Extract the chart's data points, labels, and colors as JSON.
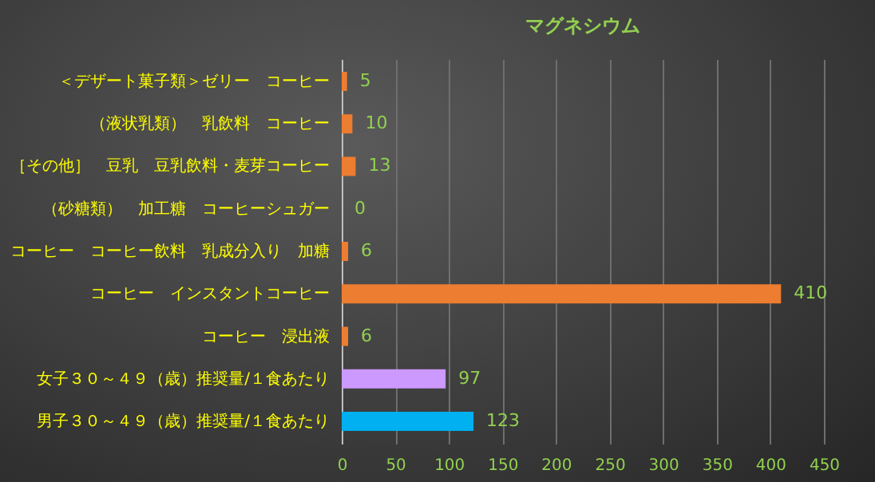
{
  "chart_data": {
    "type": "bar",
    "orientation": "horizontal",
    "title": "マグネシウム",
    "categories": [
      "＜デザート菓子類＞ゼリー　コーヒー",
      "（液状乳類）　乳飲料　コーヒー",
      "［その他］　豆乳　豆乳飲料・麦芽コーヒー",
      "（砂糖類）　加工糖　コーヒーシュガー",
      "コーヒー　コーヒー飲料　乳成分入り　加糖",
      "コーヒー　インスタントコーヒー",
      "コーヒー　浸出液",
      "女子３０～４９（歳）推奨量/１食あたり",
      "男子３０～４９（歳）推奨量/１食あたり"
    ],
    "values": [
      5,
      10,
      13,
      0,
      6,
      410,
      6,
      97,
      123
    ],
    "colors": [
      "#ed7d31",
      "#ed7d31",
      "#ed7d31",
      "#ed7d31",
      "#ed7d31",
      "#ed7d31",
      "#ed7d31",
      "#cc99ff",
      "#00b0f0"
    ],
    "xlim": [
      0,
      450
    ],
    "xticks": [
      0,
      50,
      100,
      150,
      200,
      250,
      300,
      350,
      400,
      450
    ],
    "grid": "x",
    "data_labels": true,
    "legend": false
  }
}
